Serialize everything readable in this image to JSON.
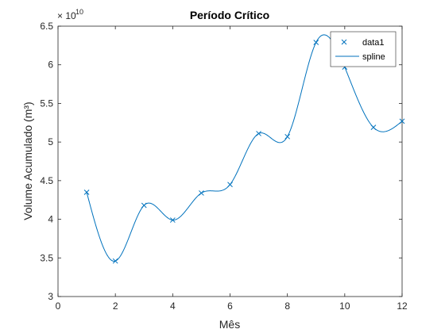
{
  "chart_data": {
    "type": "line",
    "title": "Período Crítico",
    "xlabel": "Mês",
    "ylabel": "Volume Acumulado (m³)",
    "y_exponent_label": "× 10",
    "y_exponent_power": "10",
    "y_scale_factor": 10000000000,
    "xlim": [
      0,
      12
    ],
    "ylim": [
      3.0,
      6.5
    ],
    "x_ticks": [
      0,
      2,
      4,
      6,
      8,
      10,
      12
    ],
    "y_ticks": [
      3,
      3.5,
      4,
      4.5,
      5,
      5.5,
      6,
      6.5
    ],
    "x_tick_labels": [
      "0",
      "2",
      "4",
      "6",
      "8",
      "10",
      "12"
    ],
    "y_tick_labels": [
      "3",
      "3.5",
      "4",
      "4.5",
      "5",
      "5.5",
      "6",
      "6.5"
    ],
    "grid": false,
    "legend_position": "top-right",
    "series": [
      {
        "name": "data1",
        "style": "markers",
        "marker": "x",
        "x": [
          1,
          2,
          3,
          4,
          5,
          6,
          7,
          8,
          9,
          10,
          11,
          12
        ],
        "values": [
          4.35,
          3.46,
          4.18,
          3.99,
          4.34,
          4.45,
          5.11,
          5.07,
          6.29,
          5.97,
          5.19,
          5.27
        ]
      },
      {
        "name": "spline",
        "style": "line",
        "x": [
          1,
          2,
          3,
          4,
          5,
          6,
          7,
          8,
          9,
          10,
          11,
          12
        ],
        "values": [
          4.35,
          3.46,
          4.18,
          3.99,
          4.34,
          4.45,
          5.11,
          5.07,
          6.29,
          5.97,
          5.19,
          5.27
        ]
      }
    ],
    "colors": {
      "series": "#0072BD",
      "axes": "#262626",
      "title": "#000000"
    }
  }
}
